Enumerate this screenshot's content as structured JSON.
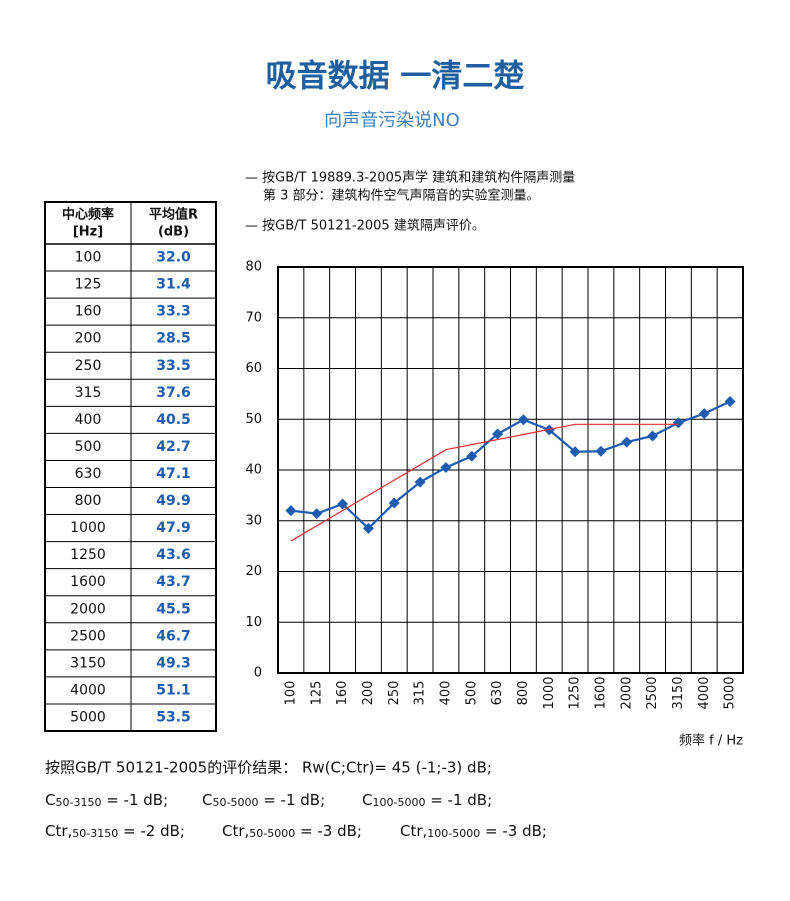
{
  "title": "吸音数据 一清二楚",
  "subtitle": "向声音污染说NO",
  "notes": [
    "— 按GB/T  19889.3-2005声学  建筑和建筑构件隔声测量",
    "第 3 部分：建筑构件空气声隔音的实验室测量。",
    "— 按GB/T  50121-2005  建筑隔声评价。"
  ],
  "table": {
    "headers": [
      [
        "中心频率",
        "[Hz]"
      ],
      [
        "平均值R",
        "(dB)"
      ]
    ]
  },
  "chart_data": {
    "type": "line",
    "x_label": "频率 f / Hz",
    "categories": [
      "100",
      "125",
      "160",
      "200",
      "250",
      "315",
      "400",
      "500",
      "630",
      "800",
      "1000",
      "1250",
      "1600",
      "2000",
      "2500",
      "3150",
      "4000",
      "5000"
    ],
    "series": [
      {
        "name": "平均值R",
        "color": "#1f5cb0",
        "marker": "diamond",
        "values": [
          32.0,
          31.4,
          33.3,
          28.5,
          33.5,
          37.6,
          40.5,
          42.7,
          47.1,
          49.9,
          47.9,
          43.6,
          43.7,
          45.5,
          46.7,
          49.3,
          51.1,
          53.5
        ],
        "value_labels": [
          "32.0",
          "31.4",
          "33.3",
          "28.5",
          "33.5",
          "37.6",
          "40.5",
          "42.7",
          "47.1",
          "49.9",
          "47.9",
          "43.6",
          "43.7",
          "45.5",
          "46.7",
          "49.3",
          "51.1",
          "53.5"
        ]
      },
      {
        "color": "#e03030",
        "marker": "none",
        "values": [
          26,
          29,
          32,
          35,
          38,
          41,
          44,
          45,
          46,
          47,
          48,
          49,
          49,
          49,
          49,
          49,
          null,
          null
        ]
      }
    ],
    "ylim": [
      0,
      80
    ],
    "yticks": [
      0,
      10,
      20,
      30,
      40,
      50,
      60,
      70,
      80
    ],
    "grid": true
  },
  "results": {
    "line1": "按照GB/T  50121-2005的评价结果：  Rw(C;Ctr)= 45 (-1;-3)  dB;",
    "line2": [
      {
        "symbol": "C",
        "sub": "50-3150",
        "value": " = -1 dB;"
      },
      {
        "symbol": "C",
        "sub": "50-5000",
        "value": " = -1 dB;"
      },
      {
        "symbol": "C",
        "sub": "100-5000",
        "value": " = -1 dB;"
      }
    ],
    "line3": [
      {
        "symbol": "Ctr,",
        "sub": "50-3150",
        "value": " = -2 dB;"
      },
      {
        "symbol": "Ctr,",
        "sub": "50-5000",
        "value": " = -3 dB;"
      },
      {
        "symbol": "Ctr,",
        "sub": "100-5000",
        "value": " = -3 dB;"
      }
    ]
  }
}
